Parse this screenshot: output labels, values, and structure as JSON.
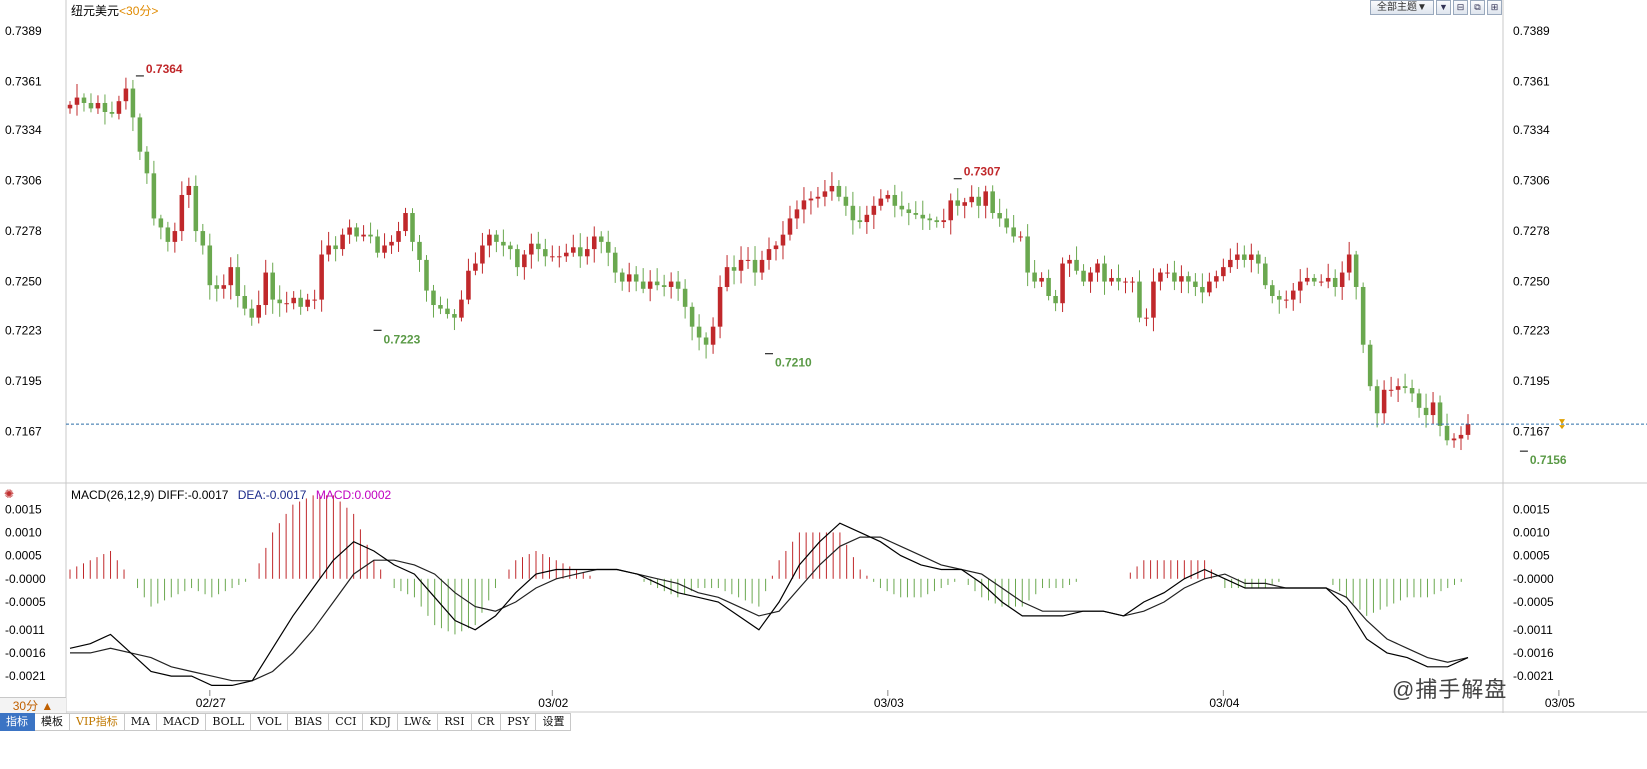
{
  "header": {
    "instrument": "纽元美元",
    "period": "<30分>",
    "theme_button": "全部主题▼"
  },
  "window_buttons": [
    "▼",
    "⊟",
    "⧉",
    "⊞"
  ],
  "price_axis": {
    "ticks": [
      "0.7389",
      "0.7361",
      "0.7334",
      "0.7306",
      "0.7278",
      "0.7250",
      "0.7223",
      "0.7195",
      "0.7167"
    ]
  },
  "price_labels": [
    {
      "text": "0.7364",
      "kind": "high"
    },
    {
      "text": "0.7223",
      "kind": "low"
    },
    {
      "text": "0.7210",
      "kind": "low"
    },
    {
      "text": "0.7307",
      "kind": "high"
    },
    {
      "text": "0.7156",
      "kind": "low"
    }
  ],
  "macd_legend": {
    "params": "MACD(26,12,9)",
    "diff": "DIFF:-0.0017",
    "dea": "DEA:-0.0017",
    "macd": "MACD:0.0002"
  },
  "macd_axis": {
    "ticks": [
      "0.0015",
      "0.0010",
      "0.0005",
      "-0.0000",
      "-0.0005",
      "-0.0011",
      "-0.0016",
      "-0.0021"
    ]
  },
  "date_ticks": [
    "02/27",
    "03/02",
    "03/03",
    "03/04",
    "03/05"
  ],
  "bottom_bar": {
    "period_button": "30分 ▲",
    "tabs": [
      "指标",
      "模板",
      "VIP指标",
      "MA",
      "MACD",
      "BOLL",
      "VOL",
      "BIAS",
      "CCI",
      "KDJ",
      "LW&",
      "RSI",
      "CR",
      "PSY",
      "设置"
    ]
  },
  "watermark": "@捕手解盘",
  "colors": {
    "up": "#c0282b",
    "down": "#6aa84f",
    "diff": "#000000",
    "dea": "#222222",
    "last_price": "#2a6ca8",
    "grid": "#dddddd"
  },
  "chart_data": {
    "type": "candlestick",
    "title": "纽元美元",
    "period": "30分",
    "ylim": [
      0.714,
      0.7395
    ],
    "last_price": 0.7171,
    "markers": [
      {
        "label": "0.7364",
        "value": 0.7364
      },
      {
        "label": "0.7223",
        "value": 0.7223
      },
      {
        "label": "0.7210",
        "value": 0.721
      },
      {
        "label": "0.7307",
        "value": 0.7307
      },
      {
        "label": "0.7156",
        "value": 0.7156
      }
    ],
    "close": [
      0.7348,
      0.7352,
      0.7349,
      0.7346,
      0.7349,
      0.7344,
      0.7343,
      0.735,
      0.7357,
      0.7341,
      0.7322,
      0.731,
      0.7285,
      0.728,
      0.7272,
      0.7278,
      0.7298,
      0.7303,
      0.7278,
      0.727,
      0.7248,
      0.7246,
      0.7248,
      0.7258,
      0.7242,
      0.7235,
      0.723,
      0.7237,
      0.7255,
      0.724,
      0.7238,
      0.7238,
      0.7241,
      0.7236,
      0.724,
      0.724,
      0.7265,
      0.727,
      0.7268,
      0.7276,
      0.728,
      0.7275,
      0.7276,
      0.7275,
      0.7266,
      0.727,
      0.7272,
      0.7278,
      0.7288,
      0.7272,
      0.7262,
      0.7245,
      0.7237,
      0.7235,
      0.7232,
      0.723,
      0.724,
      0.7256,
      0.726,
      0.727,
      0.7276,
      0.7272,
      0.727,
      0.7268,
      0.7258,
      0.7265,
      0.7271,
      0.7268,
      0.7264,
      0.7264,
      0.7264,
      0.7266,
      0.7269,
      0.7264,
      0.7268,
      0.7275,
      0.7272,
      0.7266,
      0.7255,
      0.725,
      0.7254,
      0.725,
      0.7246,
      0.725,
      0.7248,
      0.7247,
      0.725,
      0.7246,
      0.7236,
      0.7225,
      0.7219,
      0.7215,
      0.7225,
      0.7247,
      0.7258,
      0.7256,
      0.7262,
      0.7262,
      0.7255,
      0.7262,
      0.7268,
      0.727,
      0.7276,
      0.7285,
      0.729,
      0.7295,
      0.7296,
      0.7297,
      0.73,
      0.7303,
      0.7297,
      0.7292,
      0.7284,
      0.7283,
      0.7287,
      0.7292,
      0.7296,
      0.7298,
      0.7292,
      0.729,
      0.7288,
      0.7287,
      0.7285,
      0.7284,
      0.7283,
      0.7284,
      0.7295,
      0.7292,
      0.7294,
      0.7297,
      0.7292,
      0.73,
      0.7288,
      0.7285,
      0.728,
      0.7275,
      0.7275,
      0.7255,
      0.725,
      0.7252,
      0.7242,
      0.7238,
      0.726,
      0.7262,
      0.7256,
      0.725,
      0.7255,
      0.726,
      0.725,
      0.7252,
      0.725,
      0.725,
      0.725,
      0.723,
      0.723,
      0.725,
      0.7255,
      0.7255,
      0.725,
      0.7253,
      0.725,
      0.7247,
      0.7244,
      0.725,
      0.7253,
      0.7258,
      0.7262,
      0.7265,
      0.7262,
      0.7265,
      0.726,
      0.7248,
      0.7242,
      0.724,
      0.724,
      0.7245,
      0.725,
      0.7252,
      0.725,
      0.725,
      0.7252,
      0.7247,
      0.7255,
      0.7265,
      0.7247,
      0.7215,
      0.7192,
      0.7177,
      0.719,
      0.719,
      0.7192,
      0.7191,
      0.7188,
      0.718,
      0.7176,
      0.7183,
      0.717,
      0.7162,
      0.7163,
      0.7165,
      0.7171
    ],
    "xticks": [
      {
        "label": "02/27",
        "index": 20
      },
      {
        "label": "03/02",
        "index": 69
      },
      {
        "label": "03/03",
        "index": 117
      },
      {
        "label": "03/04",
        "index": 165
      },
      {
        "label": "03/05",
        "index": 213
      }
    ],
    "macd": {
      "params": "MACD(26,12,9)",
      "diff": -0.0017,
      "dea": -0.0017,
      "macd": 0.0002,
      "ylim": [
        -0.0024,
        0.0017
      ],
      "diff_series": [
        -0.0015,
        -0.0014,
        -0.0012,
        -0.0016,
        -0.002,
        -0.0021,
        -0.0021,
        -0.0023,
        -0.0023,
        -0.0022,
        -0.0015,
        -0.0008,
        -0.0002,
        0.0004,
        0.0008,
        0.0006,
        0.0003,
        0.0001,
        -0.0004,
        -0.0009,
        -0.0011,
        -0.0008,
        -0.0003,
        0.0001,
        0.0002,
        0.0002,
        0.0002,
        0.0002,
        0.0001,
        -0.0001,
        -0.0003,
        -0.0004,
        -0.0005,
        -0.0008,
        -0.0011,
        -0.0005,
        0.0003,
        0.0008,
        0.0012,
        0.001,
        0.0008,
        0.0005,
        0.0003,
        0.0002,
        0.0002,
        -0.0001,
        -0.0005,
        -0.0008,
        -0.0008,
        -0.0008,
        -0.0007,
        -0.0007,
        -0.0008,
        -0.0005,
        -0.0003,
        0.0,
        0.0002,
        0.0,
        -0.0002,
        -0.0002,
        -0.0002,
        -0.0002,
        -0.0002,
        -0.0006,
        -0.0013,
        -0.0016,
        -0.0017,
        -0.0019,
        -0.0019,
        -0.0017
      ],
      "dea_series": [
        -0.0016,
        -0.0016,
        -0.0015,
        -0.0016,
        -0.0017,
        -0.0019,
        -0.002,
        -0.0021,
        -0.0022,
        -0.0022,
        -0.002,
        -0.0016,
        -0.0011,
        -0.0005,
        0.0001,
        0.0004,
        0.0004,
        0.0003,
        0.0001,
        -0.0003,
        -0.0006,
        -0.0007,
        -0.0005,
        -0.0002,
        0.0,
        0.0001,
        0.0002,
        0.0002,
        0.0001,
        0.0,
        -0.0001,
        -0.0003,
        -0.0004,
        -0.0006,
        -0.0008,
        -0.0007,
        -0.0002,
        0.0003,
        0.0007,
        0.0009,
        0.0009,
        0.0007,
        0.0005,
        0.0003,
        0.0002,
        0.0001,
        -0.0002,
        -0.0005,
        -0.0007,
        -0.0007,
        -0.0007,
        -0.0007,
        -0.0008,
        -0.0007,
        -0.0005,
        -0.0002,
        0.0,
        0.0001,
        -0.0001,
        -0.0001,
        -0.0002,
        -0.0002,
        -0.0002,
        -0.0004,
        -0.0009,
        -0.0013,
        -0.0015,
        -0.0017,
        -0.0018,
        -0.0017
      ]
    }
  }
}
